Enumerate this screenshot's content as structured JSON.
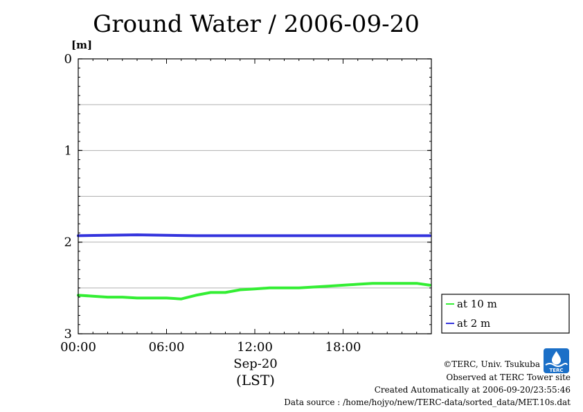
{
  "chart_data": {
    "type": "line",
    "title": "Ground Water / 2006-09-20",
    "ylabel": "[m]",
    "xlabel_date": "Sep-20",
    "xlabel_tz": "(LST)",
    "ylim": [
      0,
      3
    ],
    "y_inverted": true,
    "xlim_hours": [
      0,
      24
    ],
    "y_ticks": [
      {
        "value": 0,
        "label": "0"
      },
      {
        "value": 1,
        "label": "1"
      },
      {
        "value": 2,
        "label": "2"
      },
      {
        "value": 3,
        "label": "3"
      }
    ],
    "y_gridlines": [
      0.5,
      1,
      1.5,
      2,
      2.5
    ],
    "x_ticks": [
      {
        "value": 0,
        "label": "00:00"
      },
      {
        "value": 6,
        "label": "06:00"
      },
      {
        "value": 12,
        "label": "12:00"
      },
      {
        "value": 18,
        "label": "18:00"
      }
    ],
    "legend_position": "right",
    "series": [
      {
        "name": "at 10 m",
        "color": "#33ee33",
        "x": [
          0,
          1,
          2,
          3,
          4,
          5,
          6,
          7,
          8,
          9,
          10,
          11,
          12,
          13,
          14,
          15,
          16,
          17,
          18,
          19,
          20,
          21,
          22,
          23,
          23.9
        ],
        "y": [
          2.58,
          2.59,
          2.6,
          2.6,
          2.61,
          2.61,
          2.61,
          2.62,
          2.58,
          2.55,
          2.55,
          2.52,
          2.51,
          2.5,
          2.5,
          2.5,
          2.49,
          2.48,
          2.47,
          2.46,
          2.45,
          2.45,
          2.45,
          2.45,
          2.47
        ]
      },
      {
        "name": "at 2 m",
        "color": "#3333dd",
        "x": [
          0,
          4,
          8,
          12,
          16,
          20,
          23.9
        ],
        "y": [
          1.93,
          1.92,
          1.93,
          1.93,
          1.93,
          1.93,
          1.93
        ]
      }
    ]
  },
  "credits": {
    "copyright": "©TERC, Univ. Tsukuba",
    "observed": "Observed at TERC Tower site",
    "created": "Created Automatically at 2006-09-20/23:55:46",
    "source": "Data source : /home/hojyo/new/TERC-data/sorted_data/MET.10s.dat",
    "logo_text": "TERC"
  }
}
